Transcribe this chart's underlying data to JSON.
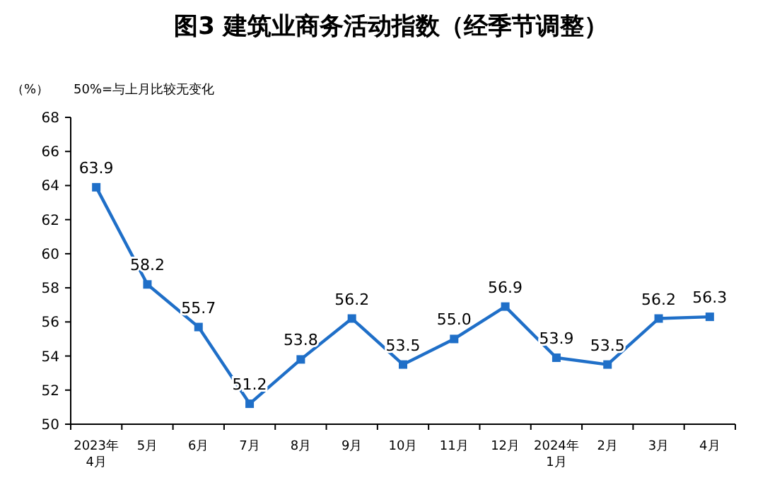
{
  "chart_data": {
    "type": "line",
    "title": "图3  建筑业商务活动指数（经季节调整）",
    "ylabel": "（%）",
    "annotations": [
      "50%=与上月比较无变化"
    ],
    "categories": [
      "2023年\n4月",
      "5月",
      "6月",
      "7月",
      "8月",
      "9月",
      "10月",
      "11月",
      "12月",
      "2024年\n1月",
      "2月",
      "3月",
      "4月"
    ],
    "series": [
      {
        "color": "#1f6fc8",
        "values": [
          63.9,
          58.2,
          55.7,
          51.2,
          53.8,
          56.2,
          53.5,
          55.0,
          56.9,
          53.9,
          53.5,
          56.2,
          56.3
        ],
        "value_labels": [
          "63.9",
          "58.2",
          "55.7",
          "51.2",
          "53.8",
          "56.2",
          "53.5",
          "55.0",
          "56.9",
          "53.9",
          "53.5",
          "56.2",
          "56.3"
        ]
      }
    ],
    "ylim": [
      50,
      68
    ],
    "yticks": [
      50,
      52,
      54,
      56,
      58,
      60,
      62,
      64,
      66,
      68
    ],
    "marker": "square",
    "line_style": "solid"
  }
}
